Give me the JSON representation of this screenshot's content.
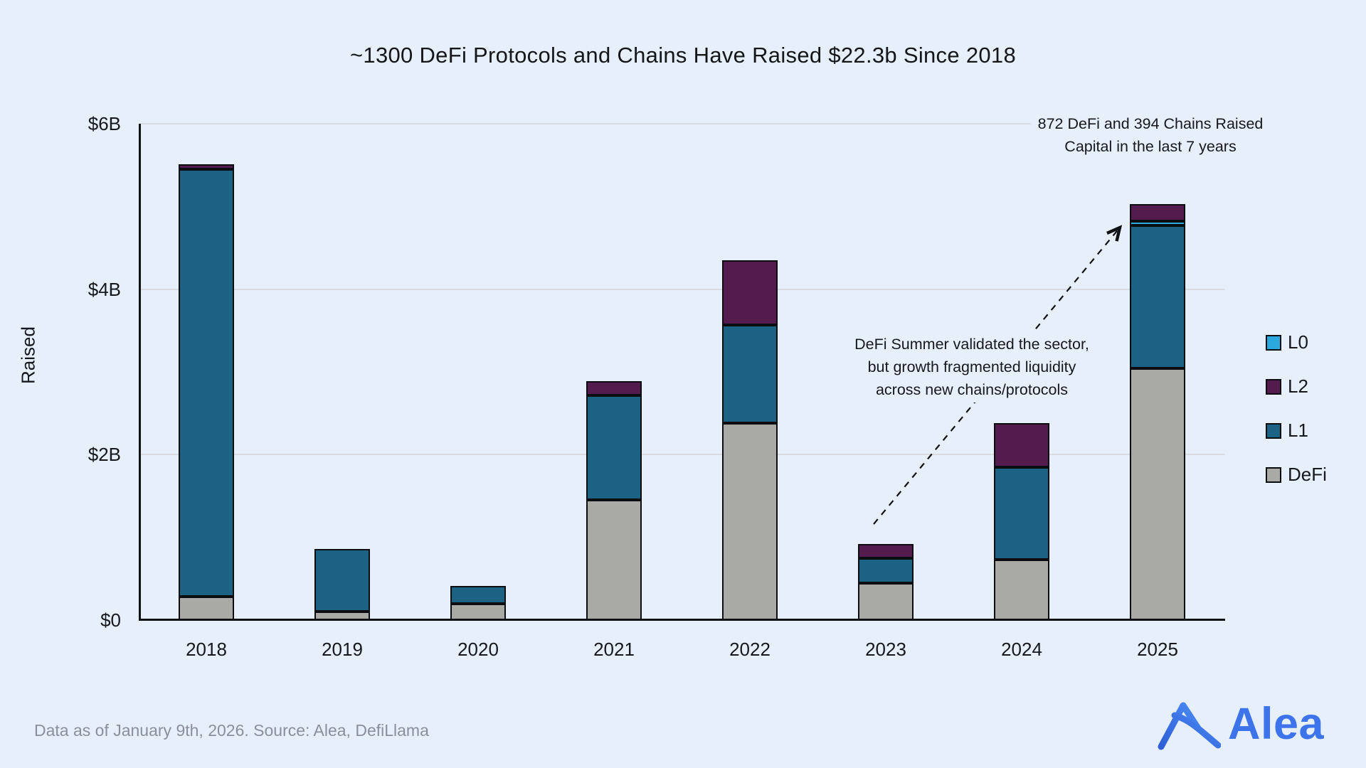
{
  "chart_data": {
    "type": "bar",
    "stacked": true,
    "title": "~1300 DeFi Protocols and Chains Have Raised $22.3b Since 2018",
    "ylabel": "Raised",
    "ylim": [
      0,
      6
    ],
    "grid": true,
    "legend_position": "right",
    "yticks": [
      {
        "value": 0,
        "label": "$0"
      },
      {
        "value": 2,
        "label": "$2B"
      },
      {
        "value": 4,
        "label": "$4B"
      },
      {
        "value": 6,
        "label": "$6B"
      }
    ],
    "categories": [
      "2018",
      "2019",
      "2020",
      "2021",
      "2022",
      "2023",
      "2024",
      "2025"
    ],
    "series": [
      {
        "name": "DeFi",
        "color": "#A9A9A5",
        "values": [
          0.28,
          0.1,
          0.2,
          1.45,
          2.38,
          0.45,
          0.73,
          3.04
        ]
      },
      {
        "name": "L1",
        "color": "#1C6284",
        "values": [
          5.17,
          0.76,
          0.21,
          1.27,
          1.19,
          0.3,
          1.12,
          1.73
        ]
      },
      {
        "name": "L0",
        "color": "#2BA9DE",
        "values": [
          0,
          0,
          0,
          0,
          0,
          0,
          0,
          0.05
        ]
      },
      {
        "name": "L2",
        "color": "#541C4E",
        "values": [
          0.06,
          0,
          0,
          0.17,
          0.78,
          0.17,
          0.53,
          0.21
        ]
      }
    ],
    "legend_order": [
      "L0",
      "L2",
      "L1",
      "DeFi"
    ],
    "annotations": [
      {
        "id": "chains-raised-note",
        "lines": [
          "872 DeFi and 394 Chains Raised",
          "Capital in the last 7 years"
        ]
      },
      {
        "id": "defi-summer-note",
        "lines": [
          "DeFi Summer validated the sector,",
          "but growth fragmented liquidity",
          "across new chains/protocols"
        ]
      }
    ]
  },
  "footer": {
    "note": "Data as of January 9th, 2026. Source: Alea, DefiLlama"
  },
  "logo": {
    "brand": "Alea",
    "color": "#3D74EC"
  }
}
